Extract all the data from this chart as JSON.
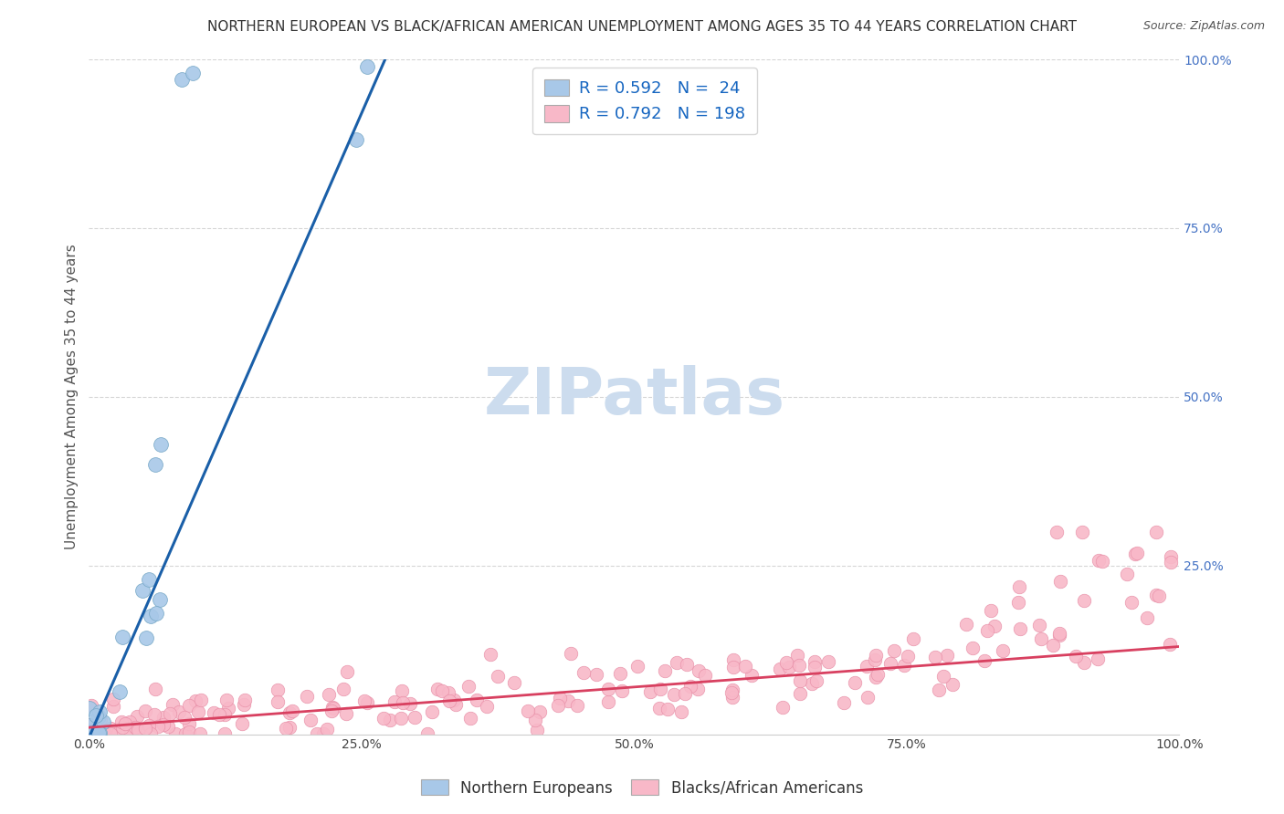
{
  "title": "NORTHERN EUROPEAN VS BLACK/AFRICAN AMERICAN UNEMPLOYMENT AMONG AGES 35 TO 44 YEARS CORRELATION CHART",
  "source": "Source: ZipAtlas.com",
  "ylabel": "Unemployment Among Ages 35 to 44 years",
  "xlim": [
    0.0,
    1.0
  ],
  "ylim": [
    0.0,
    1.0
  ],
  "xtick_labels": [
    "0.0%",
    "25.0%",
    "50.0%",
    "75.0%",
    "100.0%"
  ],
  "xtick_vals": [
    0.0,
    0.25,
    0.5,
    0.75,
    1.0
  ],
  "right_ytick_labels": [
    "100.0%",
    "75.0%",
    "50.0%",
    "25.0%"
  ],
  "right_ytick_vals": [
    1.0,
    0.75,
    0.5,
    0.25
  ],
  "blue_color": "#a8c8e8",
  "blue_edge": "#7aaac8",
  "pink_color": "#f8b8c8",
  "pink_edge": "#e890a8",
  "blue_line_color": "#1a5fa8",
  "pink_line_color": "#d84060",
  "dash_color": "#aaaacc",
  "grid_color": "#cccccc",
  "background_color": "#ffffff",
  "watermark_color": "#ccdcee",
  "legend_R1": "R = 0.592",
  "legend_N1": "N =  24",
  "legend_R2": "R = 0.792",
  "legend_N2": "N = 198",
  "blue_slope": 3.7,
  "blue_intercept": -0.005,
  "pink_slope": 0.12,
  "pink_intercept": 0.01,
  "title_fontsize": 11,
  "source_fontsize": 9,
  "axis_label_fontsize": 11,
  "tick_fontsize": 10,
  "legend_fontsize": 13,
  "watermark_fontsize": 52
}
